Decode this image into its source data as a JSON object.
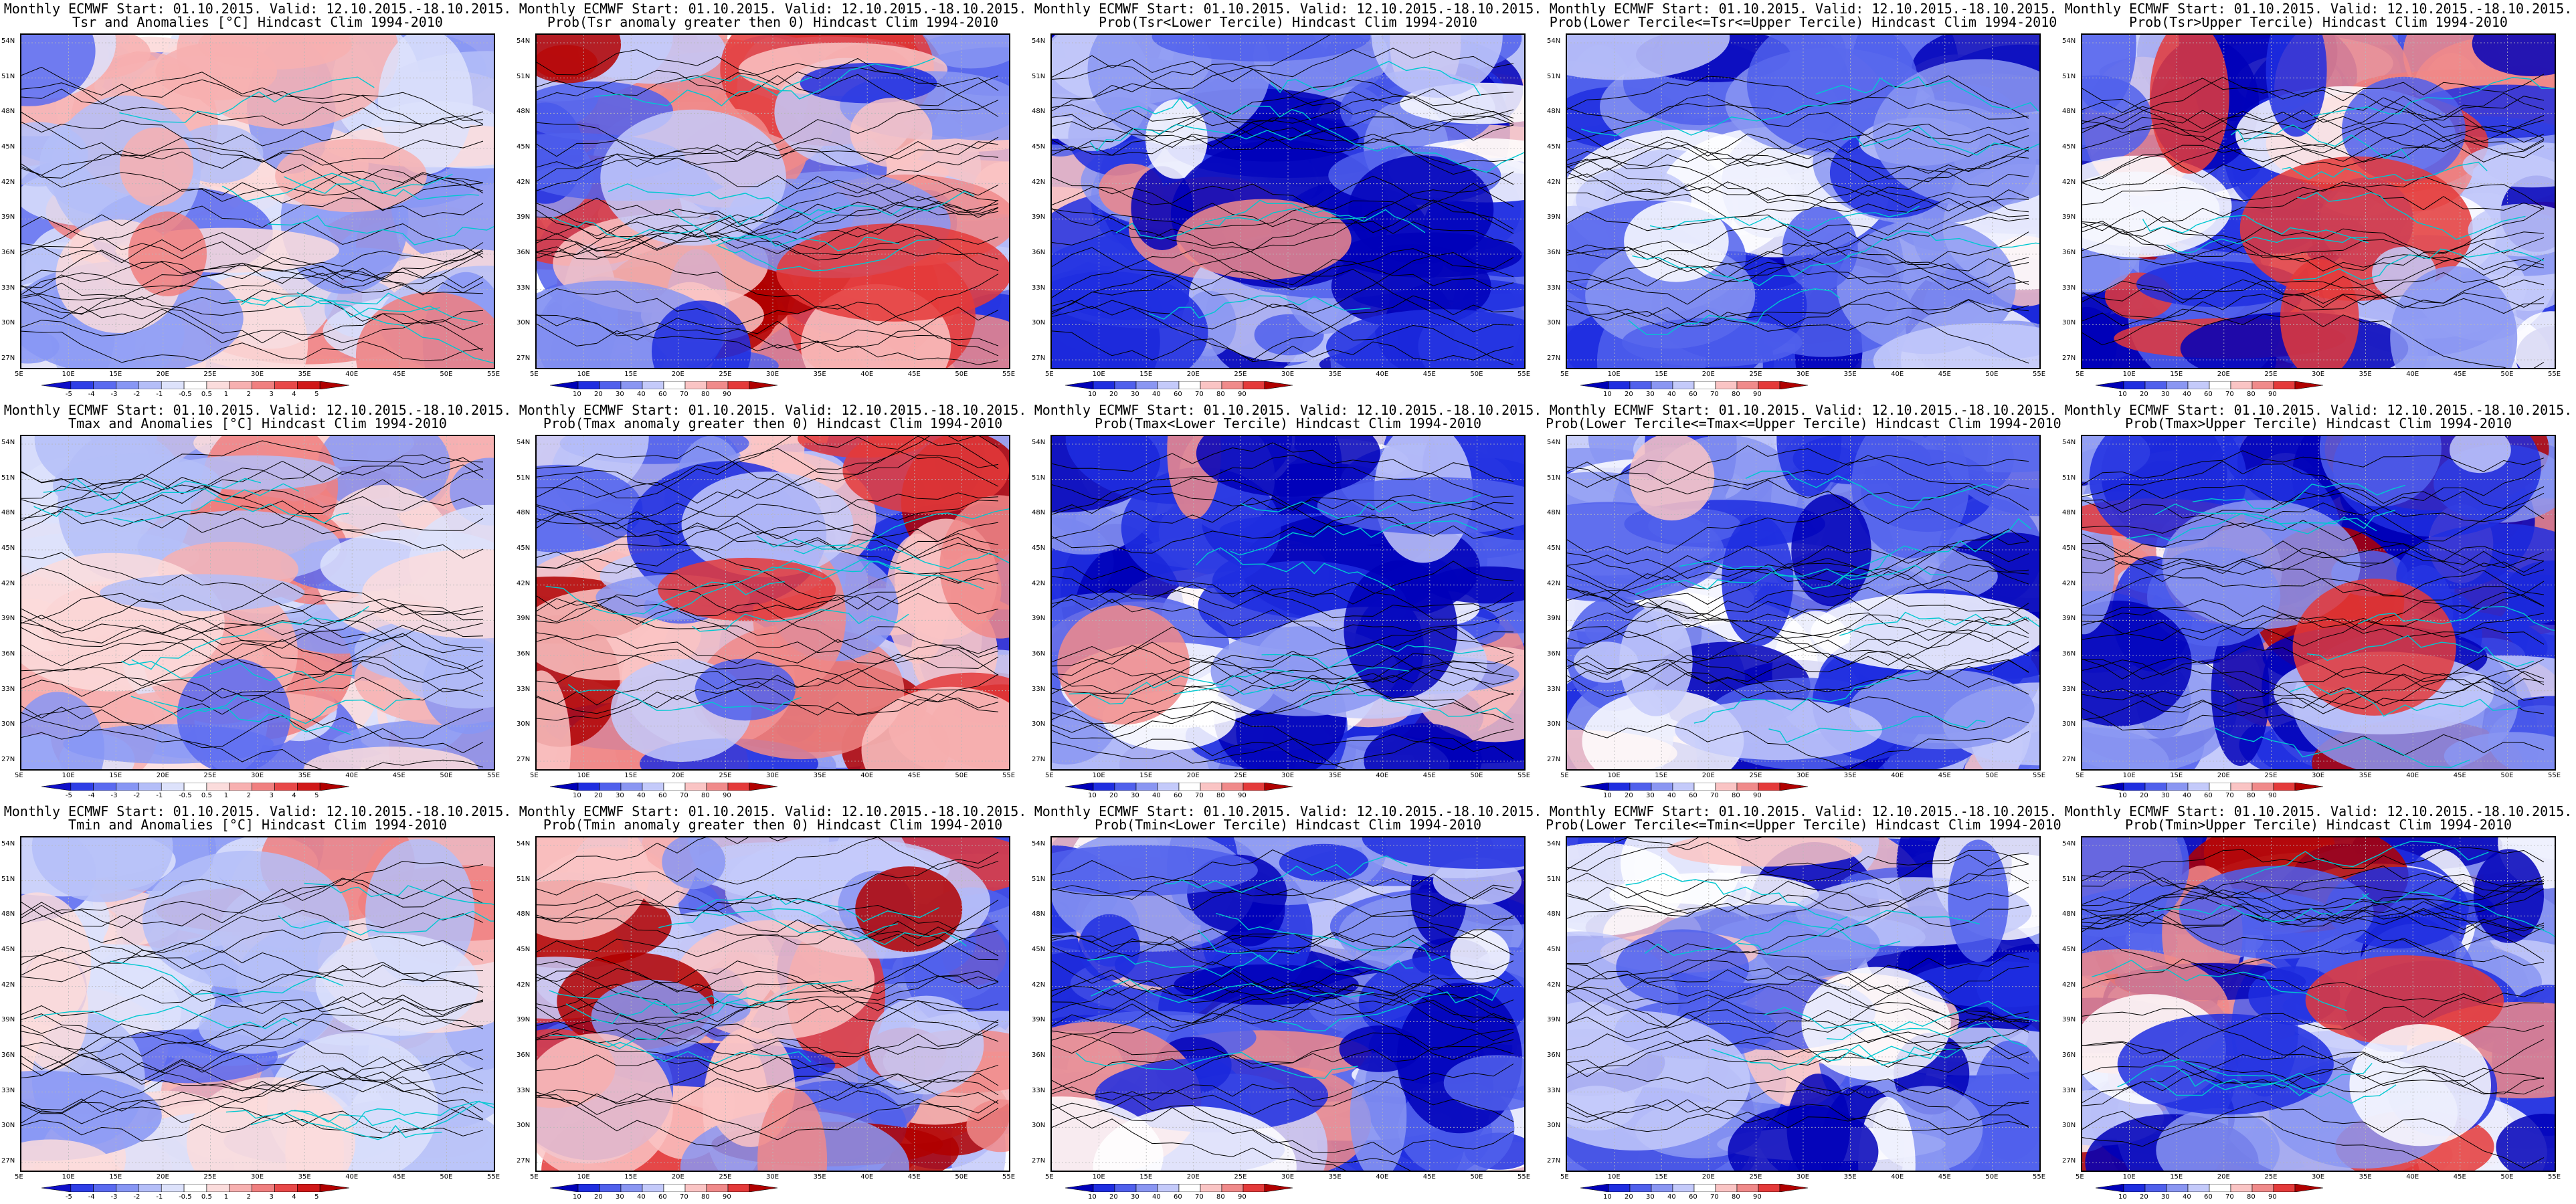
{
  "grid": {
    "rows": [
      {
        "variable": "Tsr",
        "panels": [
          {
            "line1": "Monthly ECMWF Start: 01.10.2015. Valid: 12.10.2015.-18.10.2015.",
            "line2": "Tsr and Anomalies [°C] Hindcast Clim 1994-2010",
            "type": "anomaly"
          },
          {
            "line1": "Monthly ECMWF Start: 01.10.2015. Valid: 12.10.2015.-18.10.2015.",
            "line2": "Prob(Tsr anomaly greater then 0) Hindcast Clim 1994-2010",
            "type": "prob_gt0"
          },
          {
            "line1": "Monthly ECMWF Start: 01.10.2015. Valid: 12.10.2015.-18.10.2015.",
            "line2": "Prob(Tsr<Lower Tercile) Hindcast Clim 1994-2010",
            "type": "prob_lower"
          },
          {
            "line1": "Monthly ECMWF Start: 01.10.2015. Valid: 12.10.2015.-18.10.2015.",
            "line2": "Prob(Lower Tercile<=Tsr<=Upper Tercile) Hindcast Clim 1994-2010",
            "type": "prob_middle"
          },
          {
            "line1": "Monthly ECMWF Start: 01.10.2015. Valid: 12.10.2015.-18.10.2015.",
            "line2": "Prob(Tsr>Upper Tercile) Hindcast Clim 1994-2010",
            "type": "prob_upper"
          }
        ]
      },
      {
        "variable": "Tmax",
        "panels": [
          {
            "line1": "Monthly ECMWF Start: 01.10.2015. Valid: 12.10.2015.-18.10.2015.",
            "line2": "Tmax and Anomalies [°C] Hindcast Clim 1994-2010",
            "type": "anomaly"
          },
          {
            "line1": "Monthly ECMWF Start: 01.10.2015. Valid: 12.10.2015.-18.10.2015.",
            "line2": "Prob(Tmax anomaly greater then 0) Hindcast Clim 1994-2010",
            "type": "prob_gt0"
          },
          {
            "line1": "Monthly ECMWF Start: 01.10.2015. Valid: 12.10.2015.-18.10.2015.",
            "line2": "Prob(Tmax<Lower Tercile) Hindcast Clim 1994-2010",
            "type": "prob_lower"
          },
          {
            "line1": "Monthly ECMWF Start: 01.10.2015. Valid: 12.10.2015.-18.10.2015.",
            "line2": "Prob(Lower Tercile<=Tmax<=Upper Tercile) Hindcast Clim 1994-2010",
            "type": "prob_middle"
          },
          {
            "line1": "Monthly ECMWF Start: 01.10.2015. Valid: 12.10.2015.-18.10.2015.",
            "line2": "Prob(Tmax>Upper Tercile) Hindcast Clim 1994-2010",
            "type": "prob_upper"
          }
        ]
      },
      {
        "variable": "Tmin",
        "panels": [
          {
            "line1": "Monthly ECMWF Start: 01.10.2015. Valid: 12.10.2015.-18.10.2015.",
            "line2": "Tmin and Anomalies [°C] Hindcast Clim 1994-2010",
            "type": "anomaly"
          },
          {
            "line1": "Monthly ECMWF Start: 01.10.2015. Valid: 12.10.2015.-18.10.2015.",
            "line2": "Prob(Tmin anomaly greater then 0) Hindcast Clim 1994-2010",
            "type": "prob_gt0"
          },
          {
            "line1": "Monthly ECMWF Start: 01.10.2015. Valid: 12.10.2015.-18.10.2015.",
            "line2": "Prob(Tmin<Lower Tercile) Hindcast Clim 1994-2010",
            "type": "prob_lower"
          },
          {
            "line1": "Monthly ECMWF Start: 01.10.2015. Valid: 12.10.2015.-18.10.2015.",
            "line2": "Prob(Lower Tercile<=Tmin<=Upper Tercile) Hindcast Clim 1994-2010",
            "type": "prob_middle"
          },
          {
            "line1": "Monthly ECMWF Start: 01.10.2015. Valid: 12.10.2015.-18.10.2015.",
            "line2": "Prob(Tmin>Upper Tercile) Hindcast Clim 1994-2010",
            "type": "prob_upper"
          }
        ]
      }
    ]
  },
  "axes": {
    "lon_labels": [
      "5E",
      "10E",
      "15E",
      "20E",
      "25E",
      "30E",
      "35E",
      "40E",
      "45E",
      "50E",
      "55E"
    ],
    "lat_labels": [
      "54N",
      "51N",
      "48N",
      "45N",
      "42N",
      "39N",
      "36N",
      "33N",
      "30N",
      "27N"
    ]
  },
  "colorbars": {
    "anomaly": {
      "labels": [
        "-5",
        "-4",
        "-3",
        "-2",
        "-1",
        "-0.5",
        "0.5",
        "1",
        "2",
        "3",
        "4",
        "5"
      ],
      "colors": [
        "#1010c8",
        "#2e3ee6",
        "#5a6af0",
        "#8796f4",
        "#b4bef8",
        "#dde2fb",
        "#ffffff",
        "#fbdcdc",
        "#f7b0b0",
        "#f07f7f",
        "#e84848",
        "#d01818",
        "#b00000"
      ]
    },
    "probability": {
      "labels": [
        "10",
        "20",
        "30",
        "40",
        "60",
        "70",
        "80",
        "90"
      ],
      "colors": [
        "#0000b8",
        "#1f2ee0",
        "#5060ec",
        "#8a96f2",
        "#c4cafa",
        "#ffffff",
        "#fac4c4",
        "#f08a8a",
        "#e43a3a",
        "#b00000"
      ]
    }
  },
  "colors": {
    "contour": "#000000",
    "coastline": "#00c8d0",
    "grid": "#b8b8b8"
  }
}
